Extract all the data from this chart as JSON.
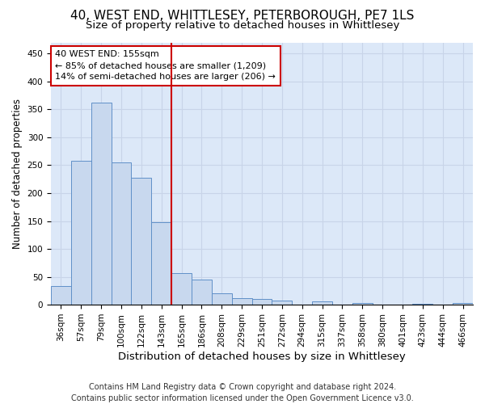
{
  "title": "40, WEST END, WHITTLESEY, PETERBOROUGH, PE7 1LS",
  "subtitle": "Size of property relative to detached houses in Whittlesey",
  "xlabel": "Distribution of detached houses by size in Whittlesey",
  "ylabel": "Number of detached properties",
  "bar_color": "#c8d8ee",
  "bar_edge_color": "#6090c8",
  "vline_color": "#cc0000",
  "annotation_line1": "40 WEST END: 155sqm",
  "annotation_line2": "← 85% of detached houses are smaller (1,209)",
  "annotation_line3": "14% of semi-detached houses are larger (206) →",
  "annotation_box_color": "white",
  "annotation_box_edge": "#cc0000",
  "footer": "Contains HM Land Registry data © Crown copyright and database right 2024.\nContains public sector information licensed under the Open Government Licence v3.0.",
  "categories": [
    "36sqm",
    "57sqm",
    "79sqm",
    "100sqm",
    "122sqm",
    "143sqm",
    "165sqm",
    "186sqm",
    "208sqm",
    "229sqm",
    "251sqm",
    "272sqm",
    "294sqm",
    "315sqm",
    "337sqm",
    "358sqm",
    "380sqm",
    "401sqm",
    "423sqm",
    "444sqm",
    "466sqm"
  ],
  "values": [
    33,
    258,
    362,
    255,
    227,
    148,
    57,
    45,
    20,
    12,
    10,
    7,
    0,
    6,
    0,
    3,
    0,
    0,
    2,
    0,
    3
  ],
  "ylim": [
    0,
    470
  ],
  "yticks": [
    0,
    50,
    100,
    150,
    200,
    250,
    300,
    350,
    400,
    450
  ],
  "grid_color": "#c8d4e8",
  "background_color": "#dce8f8",
  "title_fontsize": 11,
  "subtitle_fontsize": 9.5,
  "xlabel_fontsize": 9.5,
  "ylabel_fontsize": 8.5,
  "tick_fontsize": 7.5,
  "annotation_fontsize": 8,
  "footer_fontsize": 7
}
